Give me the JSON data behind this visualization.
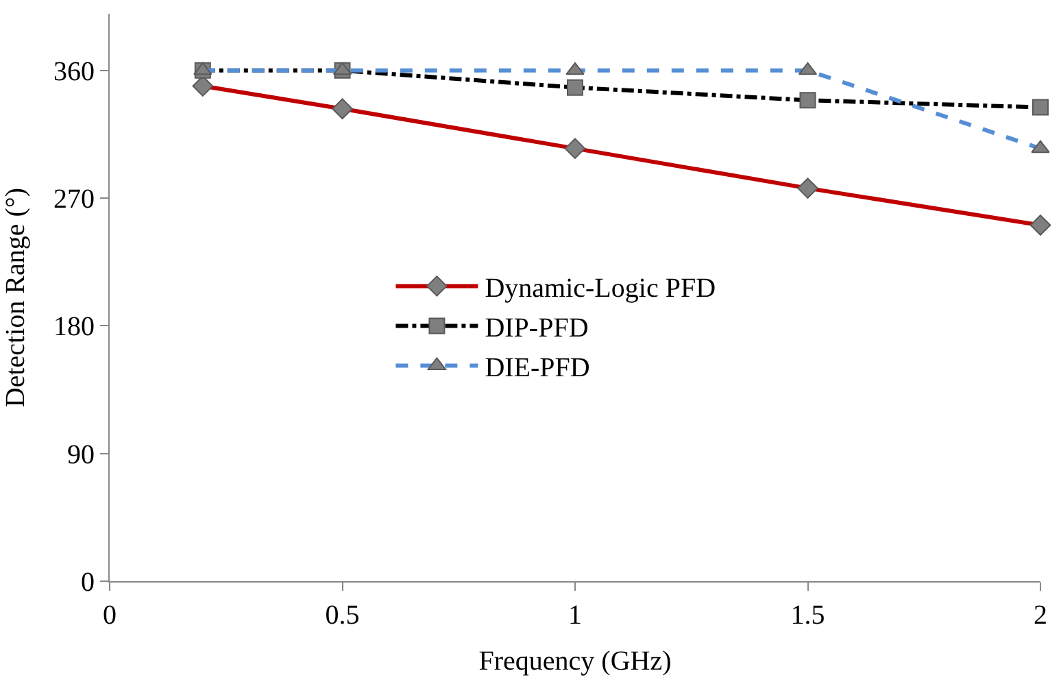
{
  "chart_data": {
    "type": "line",
    "xlabel": "Frequency (GHz)",
    "ylabel": "Detection Range (°)",
    "x": [
      0.2,
      0.5,
      1,
      1.5,
      2
    ],
    "series": [
      {
        "name": "Dynamic-Logic PFD",
        "color": "#c00000",
        "marker": "diamond",
        "line_style": "solid",
        "values": [
          349,
          333,
          305,
          277,
          251
        ]
      },
      {
        "name": "DIP-PFD",
        "color": "#000000",
        "marker": "square",
        "line_style": "dashdot",
        "values": [
          360,
          360,
          348,
          339,
          334
        ]
      },
      {
        "name": "DIE-PFD",
        "color": "#558ed5",
        "marker": "triangle",
        "line_style": "dashed",
        "values": [
          360,
          360,
          360,
          360,
          305
        ]
      }
    ],
    "xlim": [
      0,
      2
    ],
    "xticks": [
      0,
      0.5,
      1,
      1.5,
      2
    ],
    "ylim": [
      0,
      400
    ],
    "yticks": [
      0,
      90,
      180,
      270,
      360
    ],
    "legend": "center"
  }
}
